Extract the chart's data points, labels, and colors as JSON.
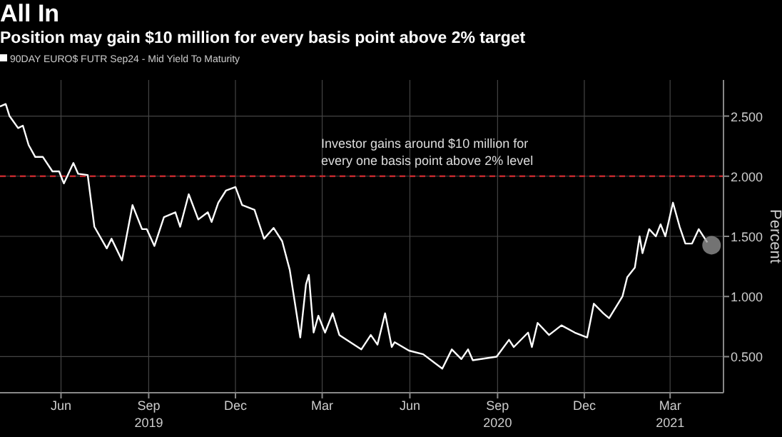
{
  "chart_data": {
    "type": "line",
    "title": "All In",
    "subtitle": "Position may gain $10 million for every basis point above 2% target",
    "ylabel": "Percent",
    "x": [
      "2019-03-29",
      "2019-04-04",
      "2019-04-08",
      "2019-04-17",
      "2019-04-22",
      "2019-04-28",
      "2019-05-05",
      "2019-05-13",
      "2019-05-23",
      "2019-05-30",
      "2019-06-04",
      "2019-06-14",
      "2019-06-19",
      "2019-06-29",
      "2019-07-06",
      "2019-07-19",
      "2019-07-24",
      "2019-08-04",
      "2019-08-15",
      "2019-08-25",
      "2019-08-30",
      "2019-09-07",
      "2019-09-17",
      "2019-09-29",
      "2019-10-04",
      "2019-10-13",
      "2019-10-23",
      "2019-11-02",
      "2019-11-06",
      "2019-11-13",
      "2019-11-21",
      "2019-12-01",
      "2019-12-08",
      "2019-12-21",
      "2019-12-31",
      "2020-01-10",
      "2020-01-19",
      "2020-01-27",
      "2020-02-07",
      "2020-02-13",
      "2020-02-16",
      "2020-02-21",
      "2020-02-26",
      "2020-03-04",
      "2020-03-12",
      "2020-03-19",
      "2020-04-11",
      "2020-04-21",
      "2020-04-28",
      "2020-05-06",
      "2020-05-13",
      "2020-05-16",
      "2020-05-31",
      "2020-06-15",
      "2020-07-05",
      "2020-07-15",
      "2020-07-25",
      "2020-08-01",
      "2020-08-06",
      "2020-08-31",
      "2020-09-13",
      "2020-09-18",
      "2020-10-03",
      "2020-10-07",
      "2020-10-13",
      "2020-10-25",
      "2020-11-07",
      "2020-11-21",
      "2020-12-04",
      "2020-12-11",
      "2020-12-21",
      "2020-12-27",
      "2021-01-10",
      "2021-01-15",
      "2021-01-23",
      "2021-01-28",
      "2021-01-31",
      "2021-02-07",
      "2021-02-14",
      "2021-02-19",
      "2021-02-24",
      "2021-03-04",
      "2021-03-11",
      "2021-03-17",
      "2021-03-24",
      "2021-03-31",
      "2021-04-09"
    ],
    "series": [
      {
        "name": "90DAY EURO$ FUTR  Sep24 - Mid Yield To Maturity",
        "color": "#ffffff",
        "values": [
          2.58,
          2.6,
          2.5,
          2.4,
          2.42,
          2.26,
          2.16,
          2.16,
          2.04,
          2.04,
          1.94,
          2.11,
          2.02,
          2.01,
          1.58,
          1.4,
          1.48,
          1.3,
          1.76,
          1.56,
          1.56,
          1.42,
          1.66,
          1.7,
          1.58,
          1.85,
          1.64,
          1.7,
          1.62,
          1.78,
          1.88,
          1.91,
          1.76,
          1.72,
          1.48,
          1.57,
          1.46,
          1.22,
          0.66,
          1.1,
          1.18,
          0.7,
          0.84,
          0.7,
          0.86,
          0.68,
          0.56,
          0.68,
          0.6,
          0.86,
          0.58,
          0.62,
          0.55,
          0.52,
          0.4,
          0.56,
          0.48,
          0.56,
          0.47,
          0.5,
          0.64,
          0.58,
          0.7,
          0.58,
          0.78,
          0.68,
          0.76,
          0.7,
          0.66,
          0.94,
          0.86,
          0.82,
          1.0,
          1.16,
          1.24,
          1.5,
          1.36,
          1.56,
          1.5,
          1.6,
          1.5,
          1.78,
          1.58,
          1.44,
          1.44,
          1.56,
          1.45
        ]
      }
    ],
    "xlim": [
      "2019-03-29",
      "2021-04-26"
    ],
    "xticks": [
      {
        "value": "2019-06-01",
        "label": "Jun"
      },
      {
        "value": "2019-09-01",
        "label": "Sep\n2019"
      },
      {
        "value": "2019-12-01",
        "label": "Dec"
      },
      {
        "value": "2020-03-01",
        "label": "Mar"
      },
      {
        "value": "2020-06-01",
        "label": "Jun"
      },
      {
        "value": "2020-09-01",
        "label": "Sep\n2020"
      },
      {
        "value": "2020-12-01",
        "label": "Dec"
      },
      {
        "value": "2021-03-01",
        "label": "Mar\n2021"
      }
    ],
    "ylim": [
      0.2,
      2.8
    ],
    "yticks": [
      {
        "value": 0.5,
        "label": "0.500"
      },
      {
        "value": 1,
        "label": "1.000"
      },
      {
        "value": 1.5,
        "label": "1.500"
      },
      {
        "value": 2,
        "label": "2.000"
      },
      {
        "value": 2.5,
        "label": "2.500"
      }
    ],
    "ref_lines": [
      {
        "axis": "y",
        "value": 2,
        "label": "Investor gains around $10 million for every one basis point above 2% level",
        "color": "#c0282d",
        "line_style": "dashed"
      }
    ],
    "grid": true,
    "legend": "top left",
    "marker": "none",
    "line_style": "solid"
  }
}
